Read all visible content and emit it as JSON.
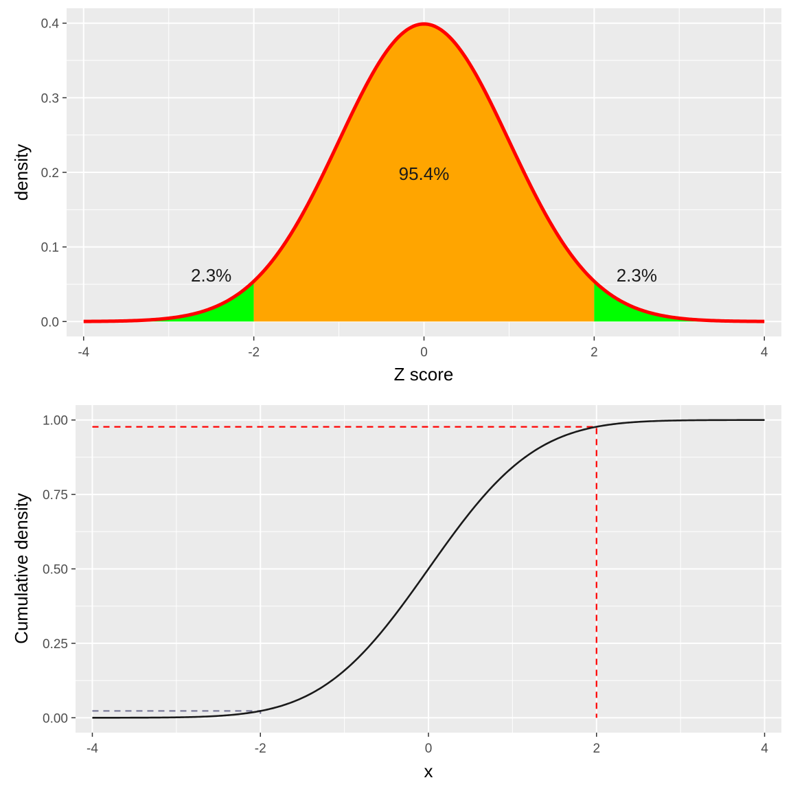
{
  "chart_data": [
    {
      "type": "area",
      "title": "",
      "xlabel": "Z score",
      "ylabel": "density",
      "xlim": [
        -4.2,
        4.2
      ],
      "ylim": [
        -0.02,
        0.42
      ],
      "grid": true,
      "x_ticks": [
        -4,
        -2,
        0,
        2,
        4
      ],
      "x_tick_labels": [
        "-4",
        "-2",
        "0",
        "2",
        "4"
      ],
      "y_ticks": [
        0.0,
        0.1,
        0.2,
        0.3,
        0.4
      ],
      "y_tick_labels": [
        "0.0",
        "0.1",
        "0.2",
        "0.3",
        "0.4"
      ],
      "curve": {
        "distribution": "standard normal pdf",
        "from": -4,
        "to": 4,
        "color": "#ff0000"
      },
      "regions": [
        {
          "from": -4,
          "to": -2,
          "color": "#00ff00"
        },
        {
          "from": -2,
          "to": 2,
          "color": "#ffa500"
        },
        {
          "from": 2,
          "to": 4,
          "color": "#00ff00"
        }
      ],
      "annotations": [
        {
          "text": "2.3%",
          "x": -2.5,
          "y": 0.062
        },
        {
          "text": "95.4%",
          "x": 0,
          "y": 0.198
        },
        {
          "text": "2.3%",
          "x": 2.5,
          "y": 0.062
        }
      ]
    },
    {
      "type": "line",
      "title": "",
      "xlabel": "x",
      "ylabel": "Cumulative density",
      "xlim": [
        -4.2,
        4.2
      ],
      "ylim": [
        -0.05,
        1.05
      ],
      "grid": true,
      "x_ticks": [
        -4,
        -2,
        0,
        2,
        4
      ],
      "x_tick_labels": [
        "-4",
        "-2",
        "0",
        "2",
        "4"
      ],
      "y_ticks": [
        0.0,
        0.25,
        0.5,
        0.75,
        1.0
      ],
      "y_tick_labels": [
        "0.00",
        "0.25",
        "0.50",
        "0.75",
        "1.00"
      ],
      "curve": {
        "distribution": "standard normal cdf",
        "from": -4,
        "to": 4,
        "color": "#1a1a1a"
      },
      "reference_lines": [
        {
          "color": "#ff0000",
          "points": [
            [
              -4,
              0.977
            ],
            [
              2,
              0.977
            ],
            [
              2,
              0
            ]
          ]
        },
        {
          "color": "#7a7a99",
          "points": [
            [
              -4,
              0.023
            ],
            [
              -2,
              0.023
            ],
            [
              -2,
              0
            ]
          ]
        }
      ]
    }
  ]
}
